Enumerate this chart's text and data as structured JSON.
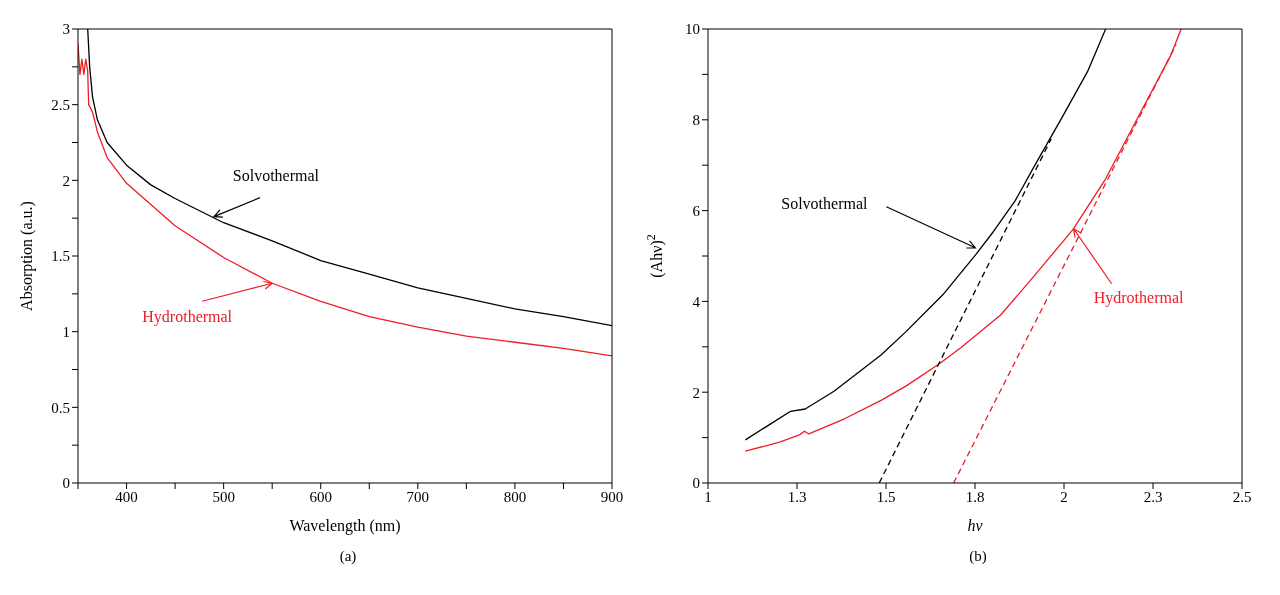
{
  "chart_data": [
    {
      "type": "line",
      "xlabel": "Wavelength (nm)",
      "ylabel": "Absorption (a.u.)",
      "xlim": [
        350,
        900
      ],
      "ylim": [
        0,
        3
      ],
      "xticks": [
        {
          "value": 350,
          "label": null
        },
        400,
        {
          "value": 450,
          "label": null
        },
        500,
        {
          "value": 550,
          "label": null
        },
        600,
        {
          "value": 650,
          "label": null
        },
        700,
        {
          "value": 750,
          "label": null
        },
        800,
        {
          "value": 850,
          "label": null
        },
        900
      ],
      "yticks": [
        0,
        {
          "value": 0.25,
          "label": null
        },
        0.5,
        {
          "value": 0.75,
          "label": null
        },
        1,
        {
          "value": 1.25,
          "label": null
        },
        1.5,
        {
          "value": 1.75,
          "label": null
        },
        2,
        {
          "value": 2.25,
          "label": null
        },
        2.5,
        {
          "value": 2.75,
          "label": null
        },
        3
      ],
      "marker": "none",
      "line_style": "solid",
      "series": [
        {
          "color": "#000000",
          "x": [
            360,
            362,
            365,
            370,
            380,
            400,
            425,
            450,
            500,
            550,
            600,
            650,
            700,
            750,
            800,
            850,
            900
          ],
          "values": [
            3.0,
            2.75,
            2.55,
            2.4,
            2.25,
            2.1,
            1.97,
            1.88,
            1.72,
            1.6,
            1.47,
            1.38,
            1.29,
            1.22,
            1.15,
            1.1,
            1.04
          ]
        },
        {
          "color": "#ee1c25",
          "x": [
            350,
            352,
            354,
            356,
            358,
            360,
            361,
            365,
            370,
            380,
            400,
            450,
            500,
            550,
            600,
            650,
            700,
            750,
            800,
            850,
            900
          ],
          "values": [
            2.9,
            2.7,
            2.8,
            2.7,
            2.8,
            2.72,
            2.5,
            2.45,
            2.32,
            2.15,
            1.98,
            1.7,
            1.49,
            1.32,
            1.2,
            1.1,
            1.03,
            0.97,
            0.93,
            0.89,
            0.84
          ]
        }
      ],
      "annotations": [
        {
          "text": "Solvothermal",
          "x": 490,
          "y": 1.76
        },
        {
          "text": "Hydrothermal",
          "x": 550,
          "y": 1.32
        },
        "(a)"
      ]
    },
    {
      "type": "line",
      "xlabel": "hν",
      "ylabel": "(Ahν)$^{2}$",
      "xlim": [
        1,
        2.5
      ],
      "ylim": [
        0,
        10
      ],
      "xticks": [
        1,
        {
          "value": 1.25,
          "label": "1.3"
        },
        1.5,
        {
          "value": 1.75,
          "label": "1.8"
        },
        2,
        {
          "value": 2.25,
          "label": "2.3"
        },
        2.5
      ],
      "yticks": [
        0,
        {
          "value": 1,
          "label": null
        },
        2,
        {
          "value": 3,
          "label": null
        },
        4,
        {
          "value": 5,
          "label": null
        },
        6,
        {
          "value": 7,
          "label": null
        },
        8,
        {
          "value": 9,
          "label": null
        },
        10
      ],
      "marker": "none",
      "line_style": "solid",
      "series": [
        {
          "color": "#000000",
          "x": [
            1.105,
            1.232,
            1.273,
            1.354,
            1.486,
            1.557,
            1.659,
            1.751,
            1.802,
            1.863,
            1.914,
            1.995,
            2.066,
            2.117
          ],
          "values": [
            0.95,
            1.58,
            1.63,
            2.02,
            2.82,
            3.34,
            4.14,
            5.02,
            5.54,
            6.22,
            6.94,
            8.06,
            9.06,
            10
          ]
        },
        {
          "color": "#ee1c25",
          "x": [
            1.105,
            1.201,
            1.257,
            1.271,
            1.283,
            1.385,
            1.486,
            1.557,
            1.649,
            1.71,
            1.822,
            1.914,
            2.025,
            2.117,
            2.219,
            2.3,
            2.329
          ],
          "values": [
            0.7,
            0.9,
            1.06,
            1.14,
            1.08,
            1.42,
            1.82,
            2.14,
            2.62,
            2.98,
            3.7,
            4.54,
            5.58,
            6.7,
            8.22,
            9.42,
            10
          ]
        },
        {
          "color": "#000000",
          "line_style": "dashed",
          "x": [
            1.481,
            1.964
          ],
          "values": [
            0,
            7.58
          ]
        },
        {
          "color": "#ee1c25",
          "line_style": "dashed",
          "x": [
            1.69,
            2.315
          ],
          "values": [
            0,
            9.66
          ]
        }
      ],
      "annotations": [
        {
          "text": "Solvothermal",
          "x": 1.751,
          "y": 5.18
        },
        {
          "text": "Hydrothermal",
          "x": 2.027,
          "y": 5.6
        },
        "(b)"
      ]
    }
  ]
}
